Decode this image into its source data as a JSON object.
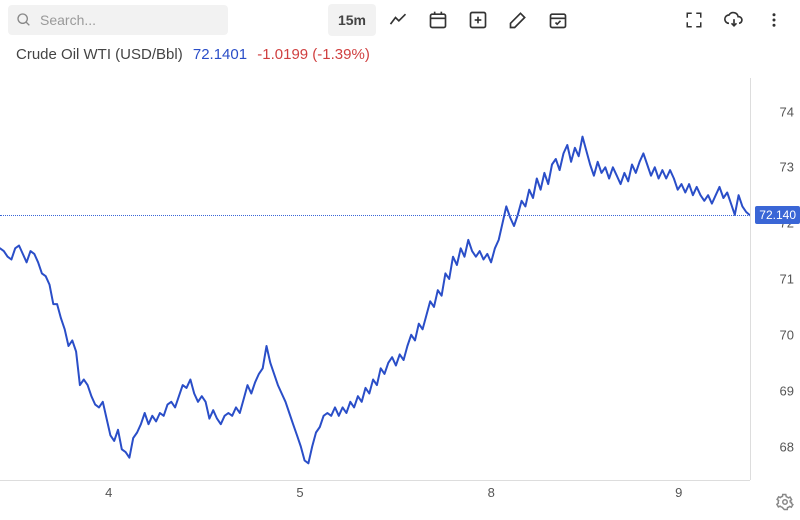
{
  "toolbar": {
    "search_placeholder": "Search...",
    "interval": "15m"
  },
  "header": {
    "name": "Crude Oil WTI (USD/Bbl)",
    "price": "72.1401",
    "change": "-1.0199 (-1.39%)"
  },
  "chart": {
    "type": "line",
    "line_color": "#2a4ec8",
    "line_width": 2,
    "background_color": "#ffffff",
    "grid_color": "#dddddd",
    "price_tag_bg": "#3a66d6",
    "last_price_label": "72.140",
    "last_price_value": 72.14,
    "ylim": [
      67.4,
      74.6
    ],
    "yticks": [
      68,
      69,
      70,
      71,
      72,
      73,
      74
    ],
    "xticks": [
      {
        "label": "4",
        "pos": 0.145
      },
      {
        "label": "5",
        "pos": 0.4
      },
      {
        "label": "8",
        "pos": 0.655
      },
      {
        "label": "9",
        "pos": 0.905
      }
    ],
    "series": [
      71.55,
      71.5,
      71.4,
      71.35,
      71.55,
      71.6,
      71.45,
      71.3,
      71.5,
      71.45,
      71.3,
      71.1,
      71.05,
      70.9,
      70.55,
      70.55,
      70.3,
      70.1,
      69.8,
      69.9,
      69.7,
      69.1,
      69.2,
      69.1,
      68.9,
      68.75,
      68.7,
      68.8,
      68.5,
      68.2,
      68.1,
      68.3,
      67.95,
      67.9,
      67.8,
      68.15,
      68.25,
      68.4,
      68.6,
      68.4,
      68.55,
      68.45,
      68.6,
      68.55,
      68.75,
      68.8,
      68.7,
      68.9,
      69.1,
      69.05,
      69.2,
      68.95,
      68.8,
      68.9,
      68.8,
      68.5,
      68.65,
      68.5,
      68.4,
      68.55,
      68.6,
      68.55,
      68.7,
      68.6,
      68.85,
      69.1,
      68.95,
      69.15,
      69.3,
      69.4,
      69.8,
      69.5,
      69.3,
      69.1,
      68.95,
      68.8,
      68.6,
      68.4,
      68.2,
      68.0,
      67.75,
      67.7,
      68.0,
      68.25,
      68.35,
      68.55,
      68.6,
      68.55,
      68.7,
      68.55,
      68.7,
      68.6,
      68.8,
      68.7,
      68.9,
      68.8,
      69.05,
      68.95,
      69.2,
      69.1,
      69.4,
      69.3,
      69.5,
      69.6,
      69.45,
      69.65,
      69.55,
      69.8,
      70.0,
      69.9,
      70.2,
      70.1,
      70.35,
      70.6,
      70.5,
      70.8,
      70.7,
      71.1,
      71.0,
      71.4,
      71.25,
      71.55,
      71.4,
      71.7,
      71.5,
      71.4,
      71.5,
      71.35,
      71.45,
      71.3,
      71.55,
      71.7,
      72.0,
      72.3,
      72.1,
      71.95,
      72.15,
      72.4,
      72.3,
      72.6,
      72.45,
      72.8,
      72.6,
      72.9,
      72.7,
      73.05,
      73.15,
      72.95,
      73.25,
      73.4,
      73.1,
      73.35,
      73.2,
      73.55,
      73.3,
      73.05,
      72.85,
      73.1,
      72.9,
      73.0,
      72.8,
      73.0,
      72.85,
      72.7,
      72.9,
      72.75,
      73.05,
      72.9,
      73.1,
      73.25,
      73.05,
      72.85,
      73.0,
      72.8,
      72.95,
      72.8,
      72.95,
      72.8,
      72.6,
      72.7,
      72.55,
      72.7,
      72.5,
      72.65,
      72.5,
      72.4,
      72.5,
      72.35,
      72.5,
      72.65,
      72.45,
      72.55,
      72.35,
      72.15,
      72.5,
      72.3,
      72.2,
      72.14
    ]
  }
}
